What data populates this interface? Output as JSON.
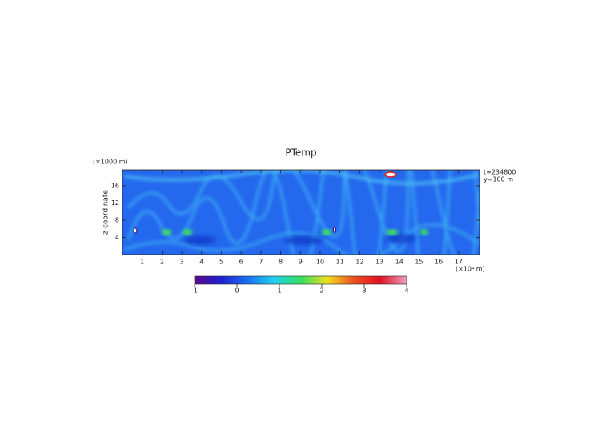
{
  "chart_data": {
    "type": "heatmap",
    "title": "PTemp",
    "y_label": "z-coordinate",
    "y_unit": "(×1000 m)",
    "x_unit": "(×10⁴ m)",
    "annotations": [
      "t=234800",
      "y=100 m"
    ],
    "xlim": [
      0,
      18.06
    ],
    "xticks": [
      1,
      2,
      3,
      4,
      5,
      6,
      7,
      8,
      9,
      10,
      11,
      12,
      13,
      14,
      15,
      16,
      17
    ],
    "ylim": [
      0,
      19.7
    ],
    "yticks": [
      4,
      8,
      12,
      16
    ],
    "clim": [
      -1,
      4
    ],
    "cticks": [
      -1,
      0,
      1,
      2,
      3,
      4
    ],
    "colormap": [
      "#5a0a8a",
      "#2020d0",
      "#1a6ff0",
      "#20d0f0",
      "#30e060",
      "#f0e020",
      "#f05020",
      "#e01020",
      "#f0a0c0"
    ]
  }
}
